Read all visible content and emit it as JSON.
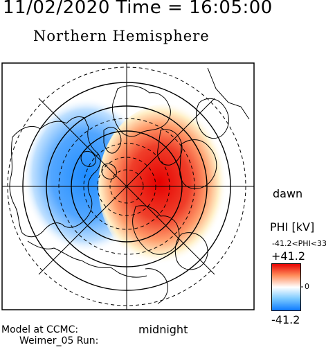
{
  "header": {
    "title": "11/02/2020 Time = 16:05:00",
    "subtitle": "Northern Hemisphere"
  },
  "map": {
    "projection": "polar-stereographic",
    "orientation": {
      "bottom": "midnight",
      "right": "dawn"
    },
    "grid": {
      "latitude_rings": true,
      "longitude_lines": true
    },
    "potential_cells": [
      {
        "sign": "negative",
        "side": "dusk/morning-left",
        "color": "#1e8cff"
      },
      {
        "sign": "positive",
        "side": "dawn-right",
        "color": "#e60000"
      }
    ]
  },
  "labels": {
    "dawn": "dawn",
    "midnight": "midnight",
    "model": "Model at CCMC:",
    "run": "Weimer_05 Run:"
  },
  "colorbar": {
    "quantity": "PHI [kV]",
    "range_text": "-41.2<PHI<33",
    "max_label": "+41.2",
    "mid_label": "0",
    "min_label": "-41.2",
    "colors": [
      "#e60000",
      "#ff8c5a",
      "#ffffff",
      "#78c8ff",
      "#0a78ff"
    ]
  }
}
